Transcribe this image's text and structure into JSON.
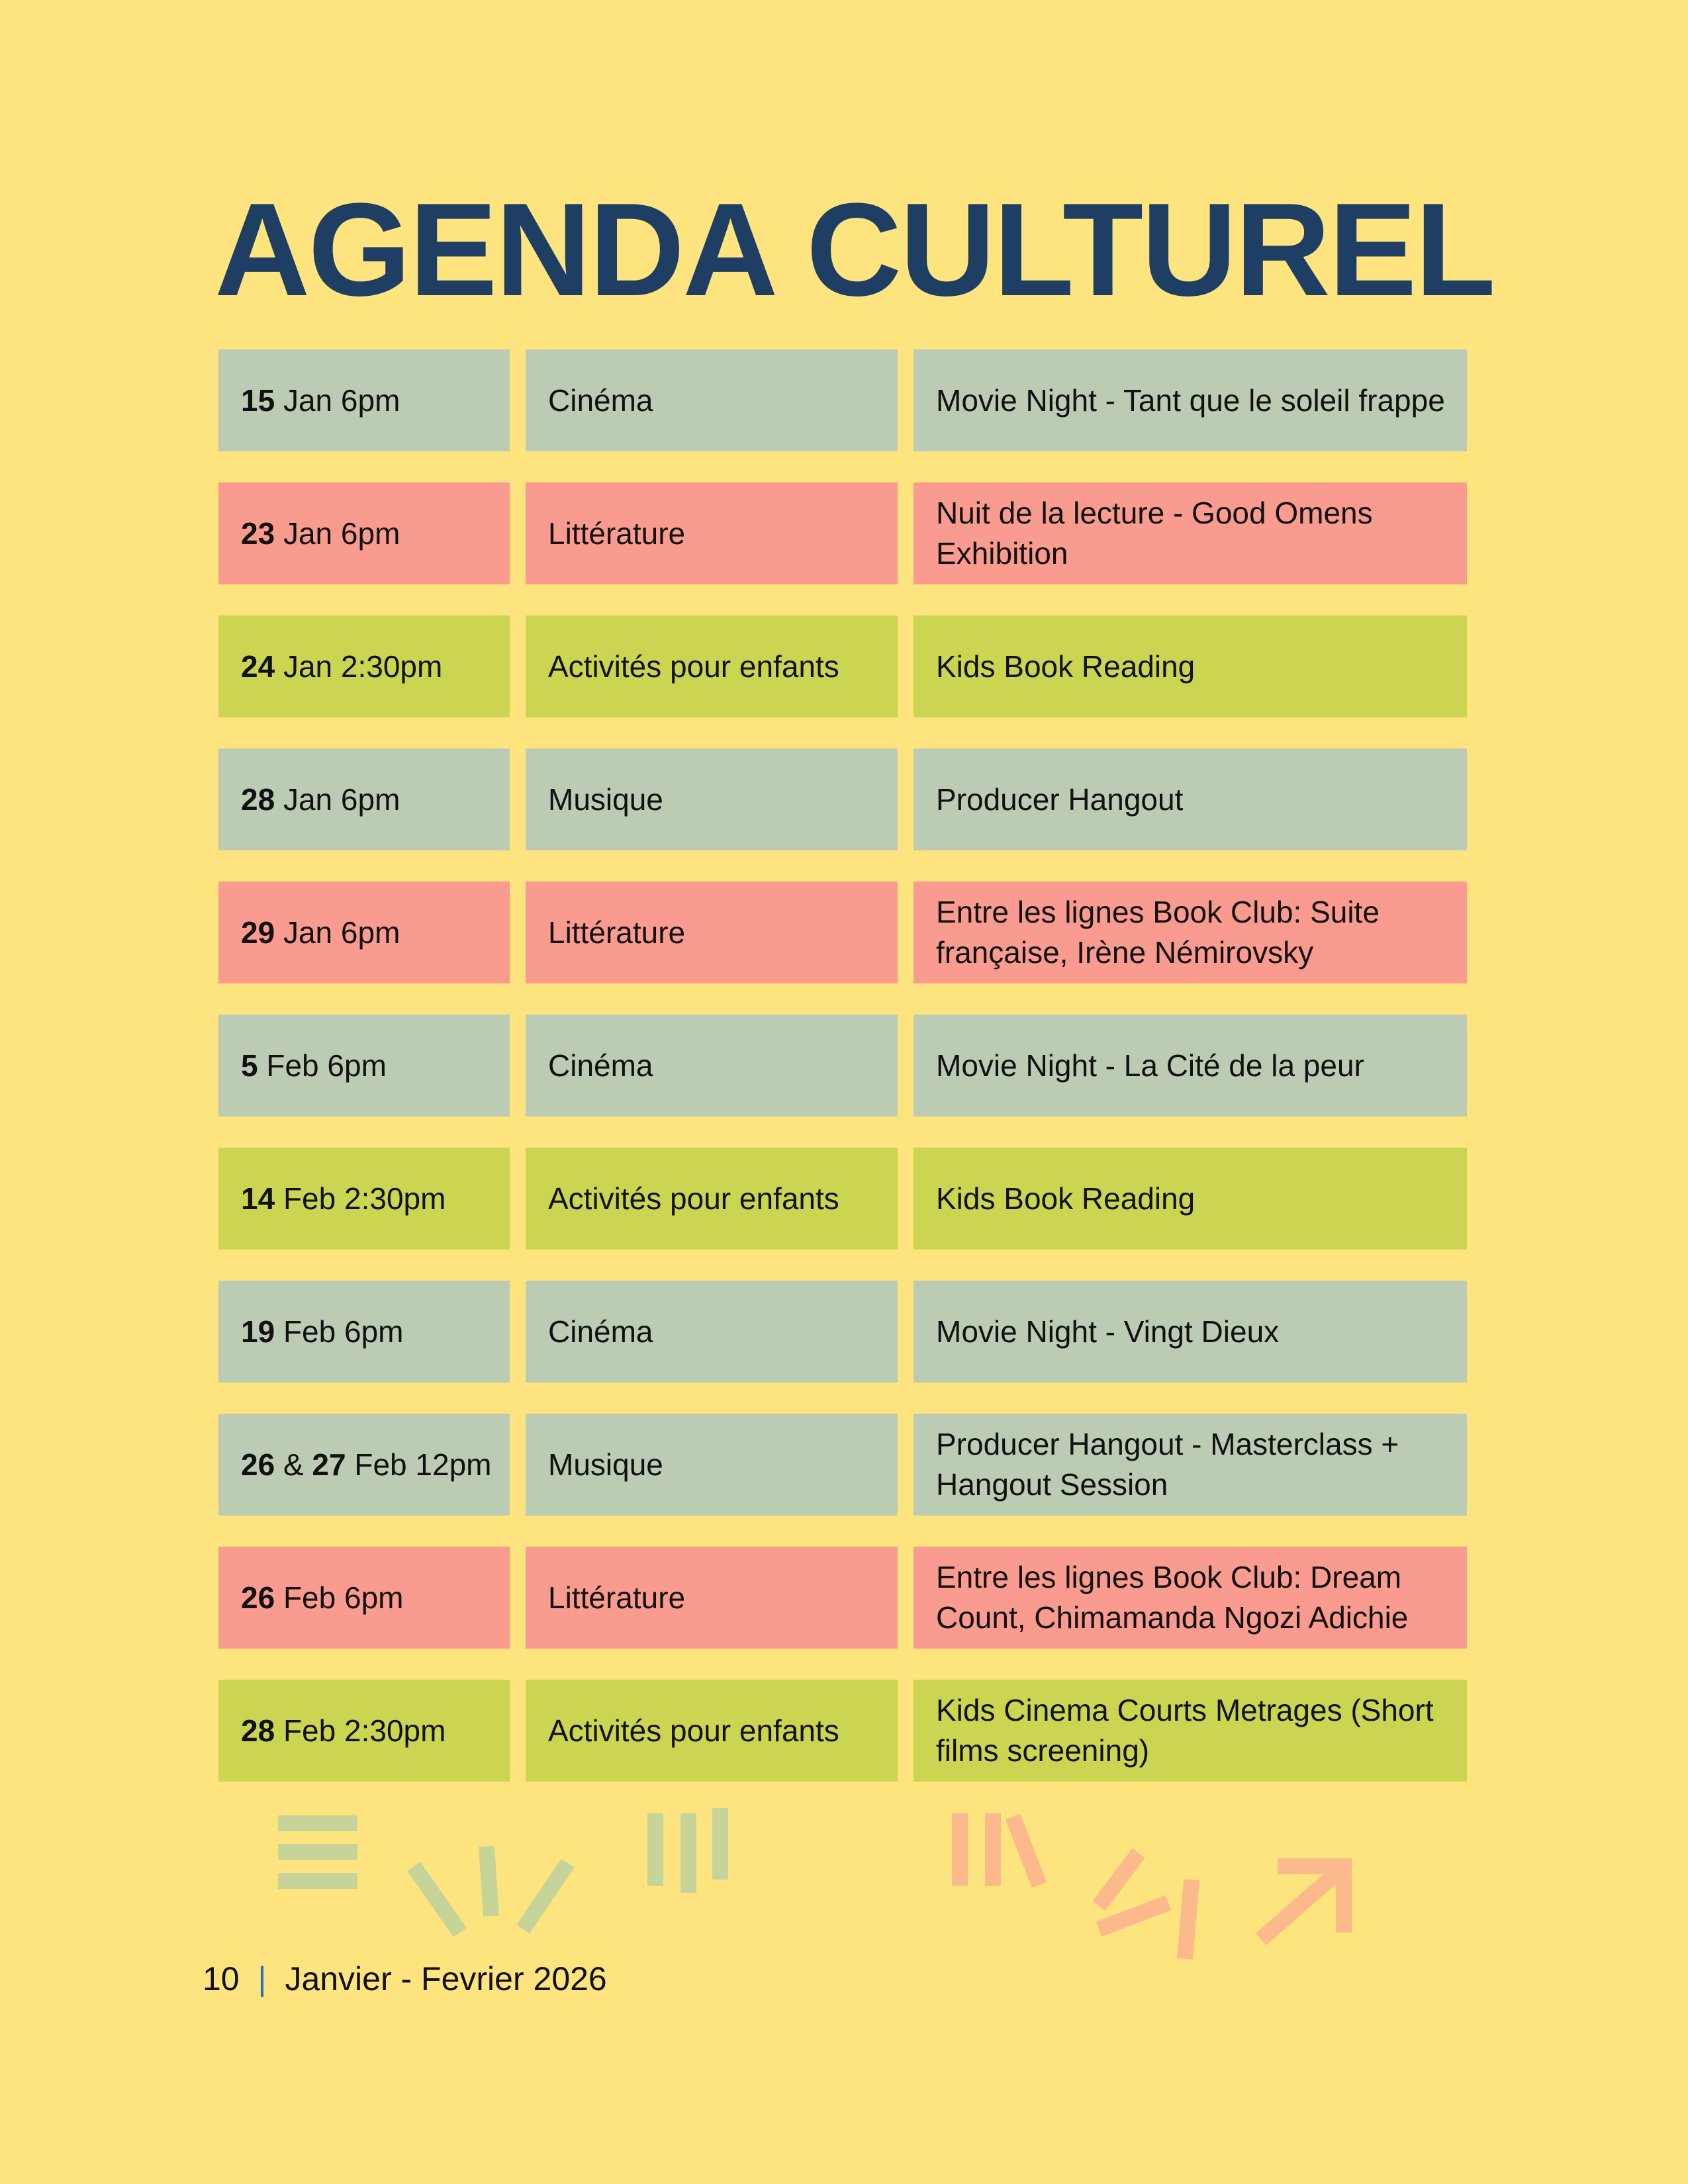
{
  "title": "AGENDA CULTUREL",
  "events": [
    {
      "theme": "grey",
      "day": "15",
      "day2": "",
      "sep": "",
      "when": "Jan 6pm",
      "category": "Cinéma",
      "title": "Movie Night - Tant que le soleil frappe"
    },
    {
      "theme": "pink",
      "day": "23",
      "day2": "",
      "sep": "",
      "when": "Jan 6pm",
      "category": "Littérature",
      "title": "Nuit de la lecture - Good Omens Exhibition"
    },
    {
      "theme": "lime",
      "day": "24",
      "day2": "",
      "sep": "",
      "when": "Jan 2:30pm",
      "category": "Activités pour enfants",
      "title": "Kids Book Reading"
    },
    {
      "theme": "grey",
      "day": "28",
      "day2": "",
      "sep": "",
      "when": "Jan 6pm",
      "category": "Musique",
      "title": "Producer Hangout"
    },
    {
      "theme": "pink",
      "day": "29",
      "day2": "",
      "sep": "",
      "when": "Jan 6pm",
      "category": "Littérature",
      "title": "Entre les lignes Book Club: Suite française, Irène Némirovsky"
    },
    {
      "theme": "grey",
      "day": "5",
      "day2": "",
      "sep": "",
      "when": "Feb 6pm",
      "category": "Cinéma",
      "title": "Movie Night - La Cité de la peur"
    },
    {
      "theme": "lime",
      "day": "14",
      "day2": "",
      "sep": "",
      "when": "Feb 2:30pm",
      "category": "Activités pour enfants",
      "title": "Kids Book Reading"
    },
    {
      "theme": "grey",
      "day": "19",
      "day2": "",
      "sep": "",
      "when": "Feb 6pm",
      "category": "Cinéma",
      "title": "Movie Night - Vingt Dieux"
    },
    {
      "theme": "grey",
      "day": "26",
      "day2": "27",
      "sep": "&",
      "when": "Feb 12pm",
      "category": "Musique",
      "title": "Producer Hangout - Masterclass + Hangout Session"
    },
    {
      "theme": "pink",
      "day": "26",
      "day2": "",
      "sep": "",
      "when": "Feb 6pm",
      "category": "Littérature",
      "title": "Entre les lignes Book Club: Dream Count, Chimamanda Ngozi Adichie"
    },
    {
      "theme": "lime",
      "day": "28",
      "day2": "",
      "sep": "",
      "when": "Feb 2:30pm",
      "category": "Activités pour enfants",
      "title": "Kids Cinema Courts Metrages (Short films screening)"
    }
  ],
  "footer": {
    "page": "10",
    "separator": "|",
    "period": "Janvier - Fevrier 2026"
  },
  "colors": {
    "background": "#fee47e",
    "title": "#1f3e64",
    "grey_row": "#bccbb4",
    "pink_row": "#f99b8e",
    "lime_row": "#ccd552",
    "deco_green": "#c6d49a",
    "deco_peach": "#fbb98c",
    "footer_separator": "#2e6fb5"
  }
}
